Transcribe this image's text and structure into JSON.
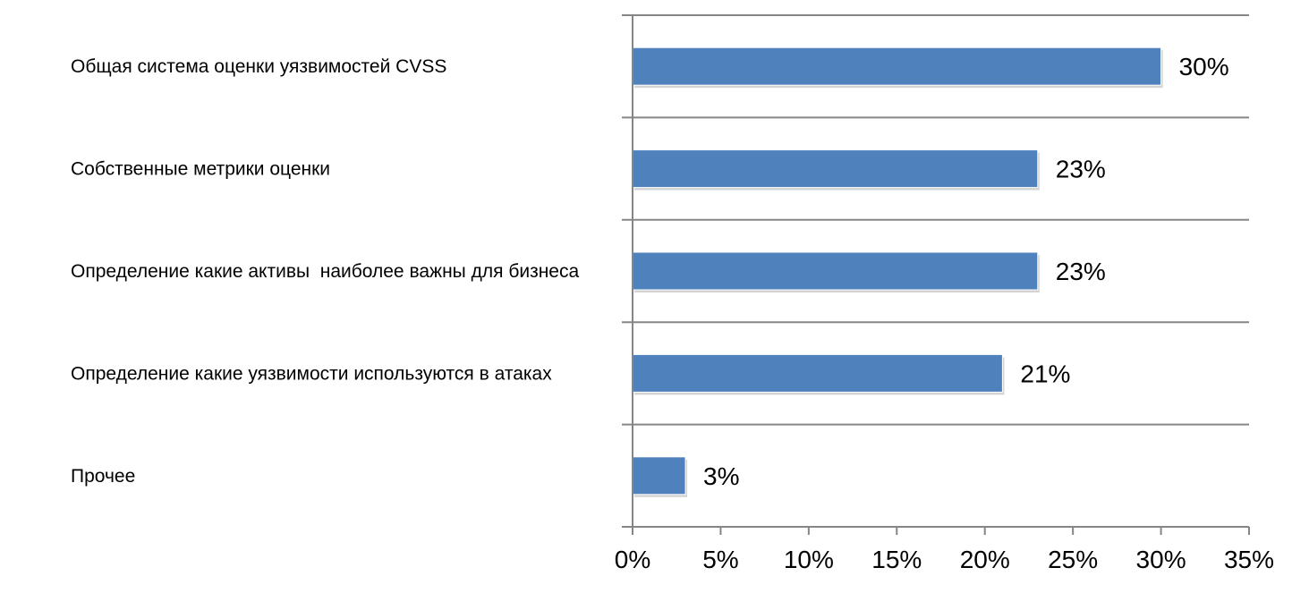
{
  "chart_data": {
    "type": "bar",
    "orientation": "horizontal",
    "categories": [
      "Общая система оценки уязвимостей CVSS",
      "Собственные метрики оценки",
      "Определение какие активы  наиболее важны для бизнеса",
      "Определение какие уязвимости используются в атаках",
      "Прочее"
    ],
    "values": [
      30,
      23,
      23,
      21,
      3
    ],
    "value_labels": [
      "30%",
      "23%",
      "23%",
      "21%",
      "3%"
    ],
    "title": "",
    "xlabel": "",
    "ylabel": "",
    "xlim": [
      0,
      35
    ],
    "x_ticks": [
      0,
      5,
      10,
      15,
      20,
      25,
      30,
      35
    ],
    "x_tick_labels": [
      "0%",
      "5%",
      "10%",
      "15%",
      "20%",
      "25%",
      "30%",
      "35%"
    ],
    "grid": "horizontal lines between categories",
    "legend": "none",
    "colors": {
      "bar": "#4F81BD",
      "axis": "#868686",
      "bar_shadow": "#d4d4d4"
    }
  }
}
